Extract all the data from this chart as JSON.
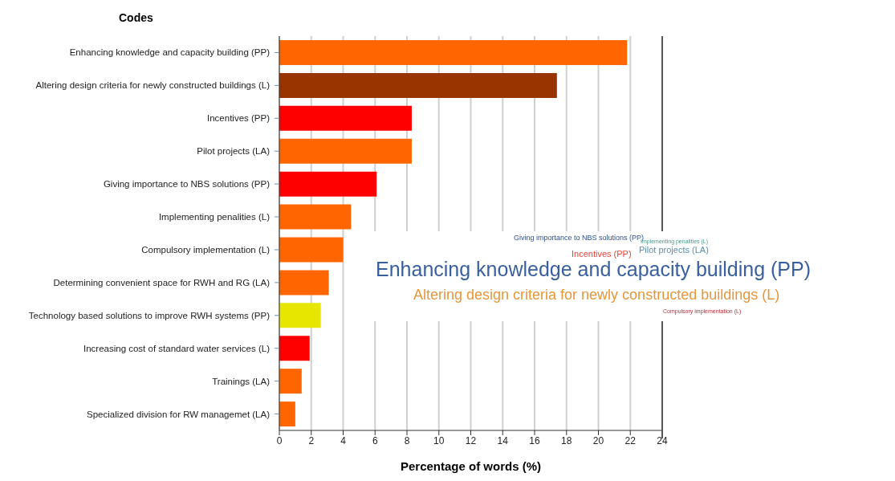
{
  "chart_data": {
    "type": "bar",
    "orientation": "horizontal",
    "ylabel": "Codes",
    "xlabel": "Percentage of words (%)",
    "categories": [
      "Enhancing knowledge and capacity building (PP)",
      "Altering design criteria for newly constructed buildings (L)",
      "Incentives (PP)",
      "Pilot projects (LA)",
      "Giving importance to NBS solutions (PP)",
      "Implementing penalities (L)",
      "Compulsory implementation (L)",
      "Determining convenient space for RWH and RG (LA)",
      "Technology based solutions to improve RWH systems (PP)",
      "Increasing cost of standard water services (L)",
      "Trainings (LA)",
      "Specialized division for RW managemet (LA)"
    ],
    "values": [
      21.8,
      17.4,
      8.3,
      8.3,
      6.1,
      4.5,
      4.0,
      3.1,
      2.6,
      1.9,
      1.4,
      1.0
    ],
    "colors": [
      "#ff6600",
      "#993300",
      "#ff0000",
      "#ff6600",
      "#ff0000",
      "#ff6600",
      "#ff6600",
      "#ff6600",
      "#e6e600",
      "#ff0000",
      "#ff6600",
      "#ff6600"
    ],
    "xlim": [
      0,
      24
    ],
    "xticks": [
      0,
      2,
      4,
      6,
      8,
      10,
      12,
      14,
      16,
      18,
      20,
      22,
      24
    ],
    "grid": "x",
    "annotations": [
      "Giving importance to NBS solutions (PP)",
      "Implementing penalities (L)",
      "Incentives (PP)",
      "Pilot projects (LA)",
      "Enhancing knowledge and capacity building (PP)",
      "Altering design criteria for newly constructed buildings (L)",
      "Compulsory implementation (L)"
    ]
  }
}
